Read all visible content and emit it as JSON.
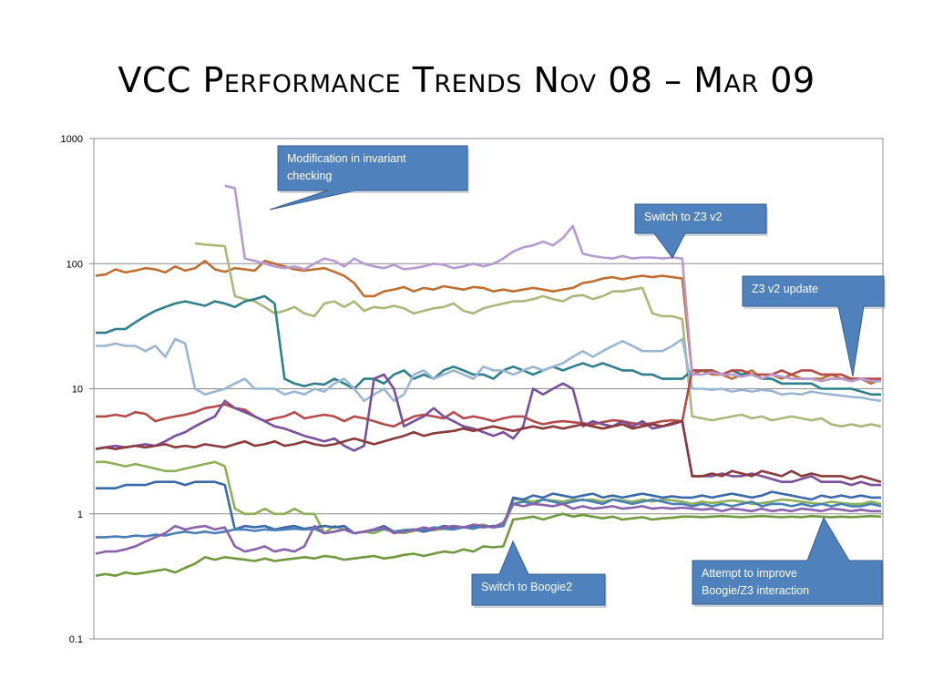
{
  "slide": {
    "title": "VCC Performance Trends Nov 08 – Mar 09"
  },
  "chart_data": {
    "type": "line",
    "yscale": "log",
    "ylim": [
      0.1,
      1000
    ],
    "ytick_labels": [
      "1000",
      "100",
      "10",
      "1",
      "0.1"
    ],
    "ytick_values": [
      1000,
      100,
      10,
      1,
      0.1
    ],
    "grid": true,
    "legend": "none",
    "x_points": 80,
    "series": [
      {
        "color": "#b8a4cf",
        "values": [
          null,
          null,
          null,
          null,
          null,
          null,
          null,
          null,
          null,
          null,
          null,
          null,
          null,
          null,
          null,
          null,
          null,
          null,
          null,
          null,
          null,
          null,
          null,
          null,
          null,
          null,
          null,
          null,
          null,
          null,
          null,
          null,
          null,
          null,
          null,
          null,
          null,
          null,
          null,
          null,
          null,
          null,
          null,
          null,
          null,
          null,
          null,
          null,
          null,
          null,
          null,
          null,
          null,
          null,
          null,
          null,
          null,
          null,
          null,
          null,
          null,
          null,
          null,
          null,
          null,
          null,
          null,
          null,
          null,
          null,
          null,
          null,
          null,
          null,
          null,
          null,
          null,
          null,
          null,
          null
        ]
      },
      {
        "color": "#a99cc7",
        "values": [
          null,
          null,
          null,
          null,
          null,
          null,
          null,
          null,
          null,
          null,
          null,
          null,
          null,
          null,
          null,
          null,
          null,
          null,
          null,
          null,
          null,
          null,
          null,
          null,
          null,
          null,
          null,
          null,
          null,
          null,
          null,
          null,
          null,
          null,
          null,
          null,
          null,
          null,
          null,
          null,
          null,
          null,
          null,
          null,
          null,
          null,
          null,
          null,
          null,
          null,
          null,
          null,
          null,
          null,
          null,
          null,
          null,
          null,
          null,
          null,
          null,
          null,
          null,
          null,
          null,
          null,
          null,
          null,
          null,
          null,
          null,
          null,
          null,
          null,
          null,
          null,
          null,
          null,
          null,
          null
        ]
      },
      {
        "color": "#c06f32",
        "values": [
          80,
          82,
          90,
          85,
          88,
          92,
          90,
          85,
          95,
          88,
          92,
          105,
          90,
          86,
          92,
          90,
          88,
          105,
          100,
          95,
          90,
          88,
          90,
          92,
          86,
          80,
          70,
          55,
          55,
          60,
          62,
          65,
          60,
          64,
          62,
          66,
          64,
          62,
          65,
          64,
          60,
          62,
          60,
          62,
          64,
          62,
          60,
          62,
          64,
          70,
          72,
          76,
          78,
          75,
          78,
          80,
          78,
          80,
          78,
          76,
          13,
          14,
          13,
          13,
          12,
          13,
          14,
          12,
          13,
          12,
          13,
          12,
          12,
          12,
          13,
          12,
          12,
          12,
          11,
          12
        ]
      },
      {
        "color": "#aab87a",
        "values": [
          null,
          null,
          null,
          null,
          null,
          null,
          null,
          null,
          null,
          null,
          145,
          142,
          140,
          138,
          55,
          52,
          50,
          45,
          40,
          42,
          45,
          40,
          38,
          48,
          50,
          45,
          50,
          42,
          45,
          44,
          46,
          44,
          40,
          42,
          44,
          45,
          48,
          42,
          40,
          44,
          46,
          48,
          50,
          50,
          52,
          55,
          52,
          50,
          55,
          56,
          52,
          55,
          60,
          60,
          62,
          64,
          40,
          38,
          38,
          36,
          6,
          5.8,
          5.6,
          5.8,
          6,
          6.2,
          5.8,
          6,
          5.6,
          5.8,
          6,
          5.8,
          5.6,
          5.8,
          5.2,
          5,
          5.2,
          5,
          5.2,
          5
        ]
      },
      {
        "color": "#2f7f8c",
        "values": [
          28,
          28,
          30,
          30,
          34,
          38,
          42,
          45,
          48,
          50,
          48,
          46,
          50,
          48,
          45,
          50,
          52,
          55,
          48,
          12,
          11,
          10.5,
          11,
          10.8,
          12,
          11,
          10,
          12,
          12,
          11,
          13,
          14,
          12,
          13,
          12,
          14,
          15,
          14,
          13,
          13,
          12,
          14,
          15,
          14,
          13,
          14,
          15,
          14,
          15,
          16,
          15,
          16,
          15,
          14,
          14,
          13,
          13,
          12,
          12,
          12,
          14,
          14,
          14,
          13,
          14,
          13,
          13,
          12,
          12,
          11,
          11,
          11,
          11,
          10,
          10,
          10,
          10,
          9.5,
          9,
          9
        ]
      },
      {
        "color": "#9bb6d4",
        "values": [
          22,
          22,
          23,
          22,
          22,
          20,
          22,
          18,
          25,
          23,
          10,
          9,
          9.5,
          10,
          11,
          12,
          10,
          10,
          10,
          9,
          9.5,
          9,
          10,
          9.5,
          11,
          12,
          10,
          8,
          9,
          10,
          8,
          9,
          13,
          14,
          12,
          13,
          14,
          13,
          12,
          15,
          14,
          14,
          13,
          14,
          15,
          14,
          15,
          16,
          18,
          20,
          18,
          20,
          22,
          24,
          22,
          20,
          20,
          20,
          22,
          25,
          10,
          10,
          9.8,
          10,
          9.5,
          9.8,
          9.5,
          9.8,
          9.6,
          9,
          9.2,
          9,
          9.5,
          9.2,
          9,
          8.8,
          8.6,
          8.5,
          8.2,
          8
        ]
      },
      {
        "color": "#b64a48",
        "values": [
          6,
          6,
          6.2,
          6,
          6.5,
          6.3,
          5.5,
          5.8,
          6,
          6.2,
          6.5,
          7,
          7.2,
          7.5,
          7,
          6.8,
          6,
          5.5,
          5.8,
          6,
          6.5,
          5.8,
          6,
          6.2,
          6,
          5.5,
          6,
          5.8,
          5.5,
          5.2,
          5,
          5.5,
          6,
          6.2,
          6,
          5.8,
          6.5,
          5.8,
          6,
          5.8,
          5.5,
          5.8,
          6,
          6,
          5.5,
          5.2,
          5.4,
          5.5,
          5.4,
          5.3,
          5.2,
          5.4,
          5.6,
          5.5,
          5.3,
          5.2,
          5.3,
          5.5,
          5.6,
          5.5,
          14,
          14,
          14,
          13,
          14,
          14,
          13,
          13,
          13,
          14,
          13,
          14,
          14,
          13,
          13,
          13,
          12,
          12,
          12,
          12
        ]
      },
      {
        "color": "#7a4f9b",
        "values": [
          3.3,
          3.4,
          3.5,
          3.4,
          3.5,
          3.6,
          3.5,
          3.8,
          4.2,
          4.5,
          5,
          5.5,
          6,
          8,
          7,
          6.5,
          6,
          5.5,
          5,
          4.8,
          4.5,
          4.2,
          4,
          3.8,
          4,
          3.5,
          3.2,
          3.5,
          12,
          13,
          10,
          5,
          5.5,
          6,
          7,
          6,
          5.5,
          5,
          4.8,
          4.5,
          4.2,
          4.5,
          4,
          5,
          10,
          9,
          10,
          11,
          10,
          5,
          5.5,
          5.2,
          5,
          5.5,
          5,
          5.5,
          4.8,
          5,
          5.2,
          5.5,
          2,
          2,
          2,
          2.1,
          2,
          2,
          2.1,
          2,
          1.9,
          1.8,
          1.8,
          1.9,
          2,
          1.8,
          1.8,
          1.8,
          1.7,
          1.8,
          1.7,
          1.7
        ]
      },
      {
        "color": "#8a3a3a",
        "values": [
          3.3,
          3.4,
          3.3,
          3.4,
          3.5,
          3.4,
          3.5,
          3.6,
          3.4,
          3.5,
          3.4,
          3.6,
          3.5,
          3.4,
          3.6,
          3.8,
          3.5,
          3.6,
          3.8,
          3.5,
          3.6,
          3.8,
          3.6,
          3.5,
          3.6,
          3.8,
          4,
          3.8,
          3.6,
          3.8,
          4,
          4.2,
          4.5,
          4.2,
          4.4,
          4.5,
          4.6,
          4.8,
          4.6,
          4.8,
          5,
          4.8,
          4.6,
          4.8,
          5,
          4.8,
          5,
          4.8,
          5,
          5.2,
          5,
          4.8,
          5,
          5.2,
          4.8,
          5,
          5.2,
          5,
          5.3,
          5.5,
          2,
          2,
          2.1,
          2,
          2.2,
          2.1,
          2,
          2.2,
          2.1,
          2,
          2.2,
          2,
          2.1,
          2,
          2,
          2,
          1.9,
          2,
          1.9,
          1.8
        ]
      },
      {
        "color": "#8db057",
        "values": [
          2.6,
          2.6,
          2.5,
          2.4,
          2.5,
          2.4,
          2.3,
          2.2,
          2.2,
          2.3,
          2.4,
          2.5,
          2.6,
          2.4,
          1.1,
          1,
          1,
          1.1,
          1,
          1,
          1.1,
          1,
          1,
          0.7,
          0.8,
          0.75,
          0.7,
          0.72,
          0.7,
          0.75,
          0.72,
          0.7,
          0.73,
          0.75,
          0.74,
          0.76,
          0.8,
          0.78,
          0.8,
          0.82,
          0.78,
          0.8,
          1.3,
          1.3,
          1.25,
          1.3,
          1.28,
          1.25,
          1.3,
          1.28,
          1.3,
          1.25,
          1.3,
          1.28,
          1.25,
          1.3,
          1.25,
          1.3,
          1.28,
          1.25,
          1.2,
          1.25,
          1.22,
          1.25,
          1.28,
          1.25,
          1.2,
          1.22,
          1.25,
          1.3,
          1.28,
          1.25,
          1.22,
          1.2,
          1.25,
          1.22,
          1.2,
          1.2,
          1.25,
          1.2
        ]
      },
      {
        "color": "#3a6aa8",
        "values": [
          1.6,
          1.6,
          1.6,
          1.7,
          1.7,
          1.7,
          1.8,
          1.8,
          1.8,
          1.7,
          1.8,
          1.8,
          1.8,
          1.7,
          0.75,
          0.8,
          0.78,
          0.8,
          0.75,
          0.78,
          0.8,
          0.76,
          0.78,
          0.8,
          0.78,
          0.8,
          0.7,
          0.72,
          0.75,
          0.8,
          0.72,
          0.74,
          0.75,
          0.72,
          0.75,
          0.8,
          0.78,
          0.78,
          0.8,
          0.78,
          0.8,
          0.8,
          1.35,
          1.3,
          1.4,
          1.35,
          1.45,
          1.4,
          1.35,
          1.4,
          1.45,
          1.35,
          1.4,
          1.35,
          1.4,
          1.45,
          1.4,
          1.35,
          1.38,
          1.35,
          1.35,
          1.4,
          1.35,
          1.4,
          1.45,
          1.4,
          1.35,
          1.4,
          1.5,
          1.45,
          1.4,
          1.35,
          1.3,
          1.4,
          1.35,
          1.4,
          1.35,
          1.4,
          1.35,
          1.35
        ]
      },
      {
        "color": "#4a7fb5",
        "values": [
          0.65,
          0.65,
          0.66,
          0.65,
          0.67,
          0.66,
          0.68,
          0.67,
          0.7,
          0.72,
          0.7,
          0.72,
          0.7,
          0.72,
          0.75,
          0.75,
          0.73,
          0.75,
          0.74,
          0.75,
          0.76,
          0.75,
          0.76,
          0.7,
          0.72,
          0.75,
          0.7,
          0.72,
          0.74,
          0.76,
          0.72,
          0.74,
          0.75,
          0.74,
          0.78,
          0.76,
          0.75,
          0.78,
          0.76,
          0.8,
          0.78,
          0.8,
          1.2,
          1.25,
          1.2,
          1.3,
          1.25,
          1.2,
          1.25,
          1.3,
          1.25,
          1.2,
          1.3,
          1.25,
          1.2,
          1.25,
          1.3,
          1.25,
          1.2,
          1.2,
          1.15,
          1.2,
          1.15,
          1.2,
          1.15,
          1.2,
          1.25,
          1.15,
          1.2,
          1.2,
          1.15,
          1.2,
          1.15,
          1.2,
          1.15,
          1.2,
          1.15,
          1.15,
          1.2,
          1.15
        ]
      },
      {
        "color": "#8a62ac",
        "values": [
          0.48,
          0.5,
          0.5,
          0.52,
          0.55,
          0.6,
          0.65,
          0.7,
          0.8,
          0.75,
          0.78,
          0.8,
          0.75,
          0.78,
          0.55,
          0.5,
          0.52,
          0.55,
          0.5,
          0.52,
          0.5,
          0.55,
          0.8,
          0.7,
          0.72,
          0.75,
          0.7,
          0.72,
          0.75,
          0.78,
          0.7,
          0.72,
          0.74,
          0.78,
          0.75,
          0.78,
          0.8,
          0.78,
          0.82,
          0.8,
          0.78,
          0.85,
          1.2,
          1.15,
          1.2,
          1.18,
          1.15,
          1.2,
          1.1,
          1.15,
          1.1,
          1.12,
          1.15,
          1.1,
          1.12,
          1.15,
          1.1,
          1.12,
          1.1,
          1.12,
          1.1,
          1.08,
          1.1,
          1.05,
          1.1,
          1.08,
          1.05,
          1.1,
          1.05,
          1.08,
          1.05,
          1.1,
          1.08,
          1.05,
          1.1,
          1.08,
          1.05,
          1.08,
          1.05,
          1.05
        ]
      },
      {
        "color": "#6f9a3d",
        "values": [
          0.32,
          0.33,
          0.32,
          0.34,
          0.33,
          0.34,
          0.35,
          0.36,
          0.34,
          0.37,
          0.4,
          0.45,
          0.43,
          0.45,
          0.44,
          0.43,
          0.42,
          0.44,
          0.42,
          0.43,
          0.44,
          0.45,
          0.44,
          0.46,
          0.45,
          0.43,
          0.44,
          0.45,
          0.46,
          0.44,
          0.45,
          0.47,
          0.48,
          0.46,
          0.48,
          0.5,
          0.49,
          0.52,
          0.5,
          0.55,
          0.54,
          0.55,
          0.9,
          0.92,
          0.95,
          0.9,
          0.95,
          1,
          0.95,
          0.98,
          0.95,
          0.92,
          0.95,
          0.9,
          0.92,
          0.94,
          0.9,
          0.92,
          0.93,
          0.95,
          0.95,
          0.94,
          0.95,
          0.96,
          0.95,
          0.94,
          0.95,
          0.96,
          0.95,
          0.94,
          0.95,
          0.94,
          0.96,
          0.95,
          0.94,
          0.95,
          0.94,
          0.95,
          0.96,
          0.95
        ]
      },
      {
        "color": "#b79ad0",
        "values": [
          null,
          null,
          null,
          null,
          null,
          null,
          null,
          null,
          null,
          null,
          null,
          null,
          null,
          420,
          400,
          110,
          105,
          100,
          95,
          92,
          95,
          90,
          100,
          110,
          105,
          95,
          110,
          100,
          95,
          92,
          98,
          90,
          92,
          95,
          100,
          98,
          92,
          95,
          100,
          95,
          100,
          110,
          125,
          135,
          140,
          150,
          140,
          160,
          200,
          120,
          115,
          112,
          110,
          115,
          110,
          112,
          112,
          110,
          112,
          110,
          13,
          13,
          13.5,
          13,
          13,
          12.5,
          13,
          12,
          13,
          12.5,
          12,
          12,
          12,
          11.5,
          12,
          12,
          11.5,
          12,
          11.5,
          11.5
        ]
      }
    ]
  },
  "callouts": [
    {
      "text_lines": [
        "Modification in invariant",
        "checking"
      ]
    },
    {
      "text_lines": [
        "Switch to Z3 v2"
      ]
    },
    {
      "text_lines": [
        "Z3 v2 update"
      ]
    },
    {
      "text_lines": [
        "Switch to Boogie2"
      ]
    },
    {
      "text_lines": [
        "Attempt to improve",
        "Boogie/Z3 interaction"
      ]
    }
  ]
}
